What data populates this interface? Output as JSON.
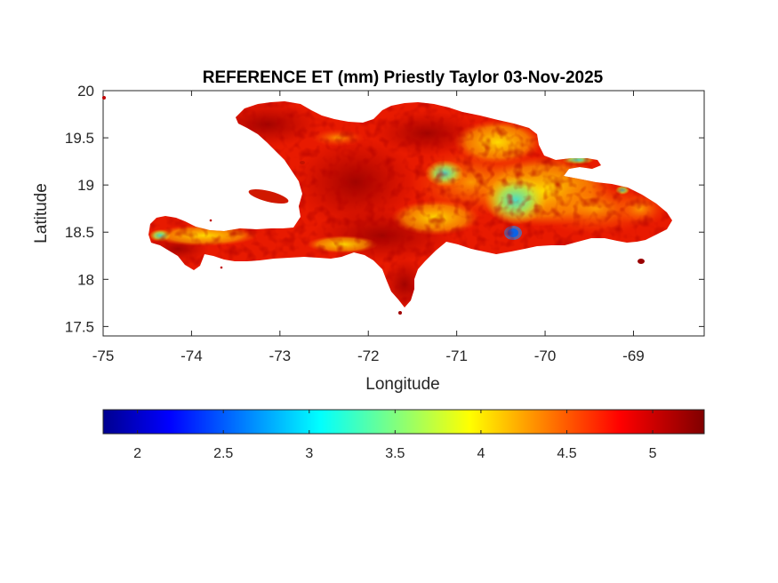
{
  "figure": {
    "title": "REFERENCE ET (mm) Priestly Taylor 03-Nov-2025",
    "xlabel": "Longitude",
    "ylabel": "Latitude",
    "xlim": [
      -75,
      -68.2
    ],
    "ylim": [
      17.4,
      20
    ],
    "xticks": [
      "-75",
      "-74",
      "-73",
      "-72",
      "-71",
      "-70",
      "-69"
    ],
    "xtick_values": [
      -75,
      -74,
      -73,
      -72,
      -71,
      -70,
      -69
    ],
    "yticks": [
      "17.5",
      "18",
      "18.5",
      "19",
      "19.5",
      "20"
    ],
    "ytick_values": [
      17.5,
      18,
      18.5,
      19,
      19.5,
      20
    ],
    "colormap": "jet",
    "colorbar": {
      "orientation": "horizontal",
      "range": [
        1.8,
        5.3
      ],
      "ticks": [
        "2",
        "2.5",
        "3",
        "3.5",
        "4",
        "4.5",
        "5"
      ],
      "tick_values": [
        2,
        2.5,
        3,
        3.5,
        4,
        4.5,
        5
      ]
    },
    "colors": {
      "low": "#00008f",
      "mid_low": "#00ffff",
      "mid": "#ffff00",
      "mid_high": "#ff0000",
      "high": "#800000"
    }
  },
  "chart_data": {
    "type": "heatmap",
    "title": "REFERENCE ET (mm) Priestly Taylor 03-Nov-2025",
    "xlabel": "Longitude",
    "ylabel": "Latitude",
    "xlim": [
      -75,
      -68.2
    ],
    "ylim": [
      17.4,
      20
    ],
    "value_range": [
      1.8,
      5.3
    ],
    "grid": false,
    "legend": "colorbar-below",
    "regions": [
      {
        "name": "",
        "lon": -72.4,
        "lat": 19.35,
        "value": 5.0
      },
      {
        "name": "",
        "lon": -73.0,
        "lat": 18.45,
        "value": 4.9
      },
      {
        "name": "",
        "lon": -71.6,
        "lat": 18.0,
        "value": 5.1
      },
      {
        "name": "",
        "lon": -71.0,
        "lat": 19.2,
        "value": 4.0
      },
      {
        "name": "",
        "lon": -70.4,
        "lat": 18.9,
        "value": 3.3
      },
      {
        "name": "",
        "lon": -70.0,
        "lat": 19.3,
        "value": 4.0
      },
      {
        "name": "",
        "lon": -69.3,
        "lat": 18.8,
        "value": 4.4
      },
      {
        "name": "",
        "lon": -70.35,
        "lat": 18.45,
        "value": 2.2
      },
      {
        "name": "",
        "lon": -74.3,
        "lat": 18.45,
        "value": 4.0
      }
    ]
  }
}
